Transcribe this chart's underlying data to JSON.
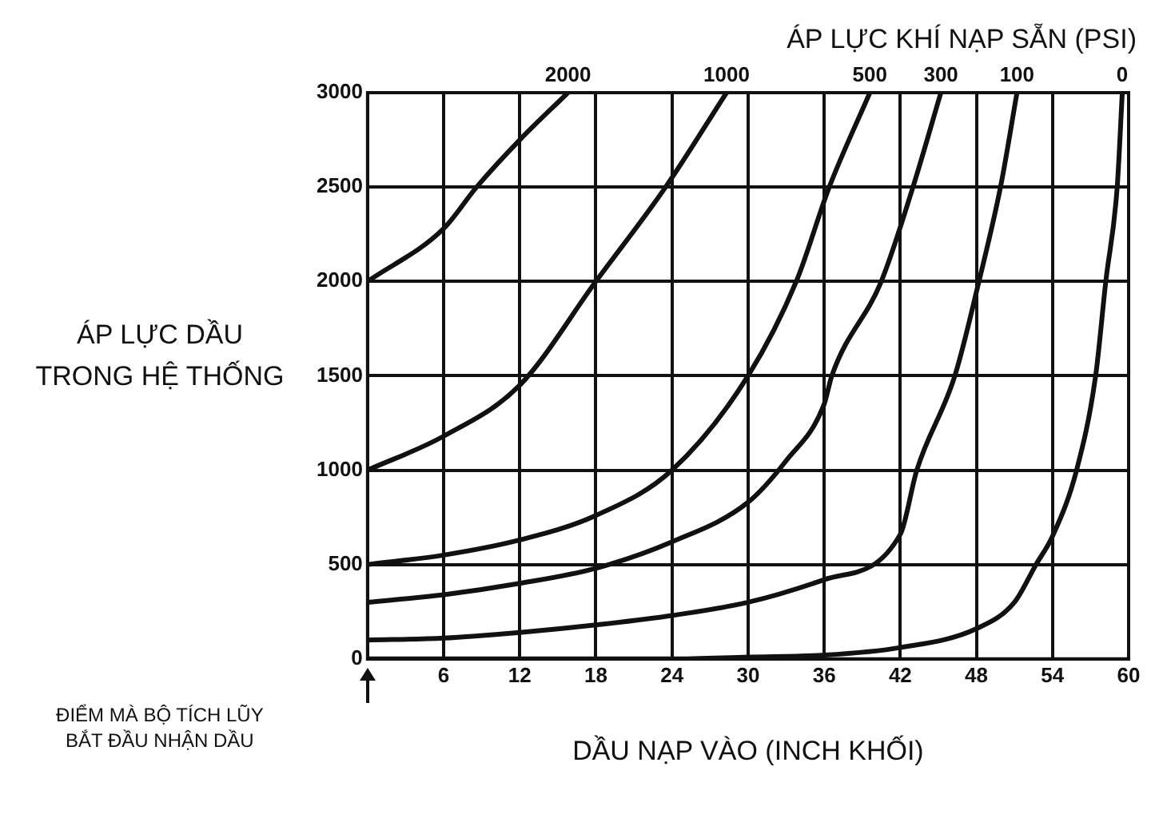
{
  "chart_data": {
    "type": "line",
    "legend_title": "ÁP LỰC KHÍ NẠP SẴN (PSI)",
    "xlabel": "DẦU NẠP VÀO (INCH KHỐI)",
    "ylabel": "ÁP LỰC DẦU\nTRONG HỆ THỐNG",
    "annotations": [
      "ĐIỂM MÀ BỘ TÍCH LŨY\nBẮT ĐẦU NHẬN DẦU"
    ],
    "xlim": [
      0,
      60
    ],
    "xticks": [
      {
        "value": 0,
        "label": null
      },
      6,
      12,
      18,
      24,
      30,
      36,
      42,
      48,
      54,
      60
    ],
    "ylim": [
      0,
      3000
    ],
    "yticks": [
      0,
      500,
      1000,
      1500,
      2000,
      2500,
      3000
    ],
    "grid": true,
    "legend": false,
    "marker": "none",
    "line_style": "solid",
    "series": [
      {
        "name": "2000",
        "color": "#111111",
        "x": [
          0,
          6,
          8.6,
          12,
          15.8
        ],
        "values": [
          2000,
          2280,
          2500,
          2750,
          3000
        ]
      },
      {
        "name": "1000",
        "color": "#111111",
        "x": [
          0,
          6,
          12,
          18,
          23.5,
          28.3
        ],
        "values": [
          1000,
          1180,
          1450,
          2000,
          2500,
          3000
        ]
      },
      {
        "name": "500",
        "color": "#111111",
        "x": [
          0,
          6,
          12,
          18,
          24,
          30,
          33.8,
          36.4,
          39.6
        ],
        "values": [
          500,
          550,
          630,
          760,
          1000,
          1500,
          2000,
          2500,
          3000
        ]
      },
      {
        "name": "300",
        "color": "#111111",
        "x": [
          0,
          6,
          12,
          18,
          24,
          30,
          33,
          36,
          36.6,
          40.5,
          43,
          45.2
        ],
        "values": [
          300,
          340,
          400,
          480,
          620,
          830,
          1050,
          1350,
          1500,
          2000,
          2500,
          3000
        ]
      },
      {
        "name": "100",
        "color": "#111111",
        "x": [
          0,
          6,
          12,
          18,
          24,
          30,
          36,
          42,
          43.3,
          46.3,
          48.2,
          49.9,
          51.2
        ],
        "values": [
          100,
          110,
          140,
          180,
          230,
          300,
          420,
          660,
          1000,
          1500,
          2000,
          2500,
          3000
        ]
      },
      {
        "name": "0",
        "color": "#111111",
        "x": [
          0,
          24,
          30,
          36,
          42,
          48,
          51,
          52.7,
          54,
          55.9,
          57.4,
          58.2,
          59.1,
          59.5
        ],
        "values": [
          0,
          0,
          10,
          20,
          60,
          160,
          300,
          500,
          650,
          1000,
          1500,
          2000,
          2500,
          3000
        ]
      }
    ]
  }
}
